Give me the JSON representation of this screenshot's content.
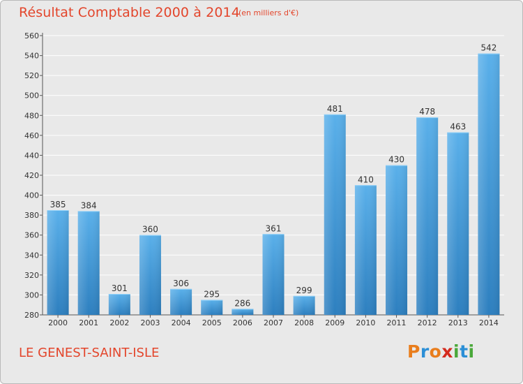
{
  "header": {
    "title": "Résultat Comptable 2000 à 2014",
    "subtitle": "(en milliers d'€)"
  },
  "footer": {
    "commune": "LE GENEST-SAINT-ISLE",
    "brand_letters": [
      "P",
      "r",
      "o",
      "x",
      "i",
      "t",
      "i"
    ]
  },
  "colors": {
    "title": "#e3452b",
    "bar_top": "#5ab0ea",
    "bar_bottom": "#2d7fbf",
    "grid": "#ffffff",
    "background": "#e9e9e9",
    "brand": [
      "#e97d1c",
      "#2c8fd6",
      "#e97d1c",
      "#d42b1e",
      "#4aa83a",
      "#2c8fd6",
      "#4aa83a"
    ]
  },
  "chart_data": {
    "type": "bar",
    "title": "Résultat Comptable 2000 à 2014",
    "ylabel": "(en milliers d'€)",
    "xlabel": "",
    "categories": [
      "2000",
      "2001",
      "2002",
      "2003",
      "2004",
      "2005",
      "2006",
      "2007",
      "2008",
      "2009",
      "2010",
      "2011",
      "2012",
      "2013",
      "2014"
    ],
    "values": [
      385,
      384,
      301,
      360,
      306,
      295,
      286,
      361,
      299,
      481,
      410,
      430,
      478,
      463,
      542
    ],
    "ylim": [
      280,
      560
    ],
    "yticks": [
      280,
      300,
      320,
      340,
      360,
      380,
      400,
      420,
      440,
      460,
      480,
      500,
      520,
      540,
      560
    ],
    "grid": true,
    "legend": "none"
  }
}
